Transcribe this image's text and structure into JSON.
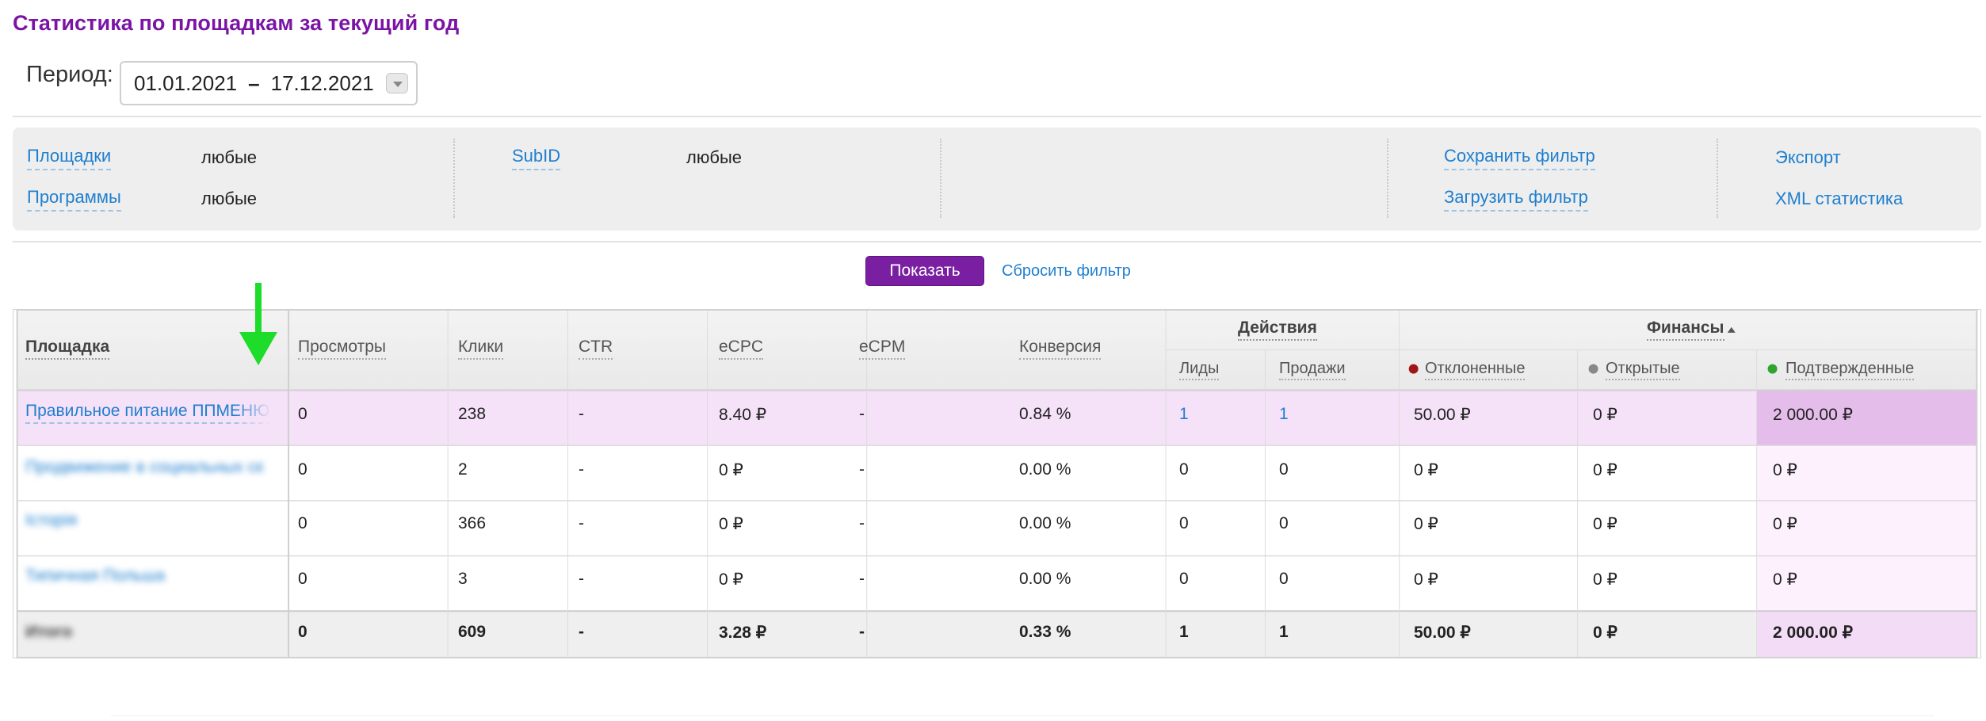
{
  "page": {
    "title": "Статистика по площадкам за текущий год"
  },
  "period": {
    "label": "Период:",
    "from": "01.01.2021",
    "separator": "–",
    "to": "17.12.2021"
  },
  "filters": {
    "platforms_label": "Площадки",
    "platforms_value": "любые",
    "programs_label": "Программы",
    "programs_value": "любые",
    "subid_label": "SubID",
    "subid_value": "любые",
    "save_filter": "Сохранить фильтр",
    "load_filter": "Загрузить фильтр",
    "export": "Экспорт",
    "xml_stats": "XML статистика"
  },
  "actions": {
    "show": "Показать",
    "reset": "Сбросить фильтр"
  },
  "table": {
    "headers": {
      "platform": "Площадка",
      "views": "Просмотры",
      "clicks": "Клики",
      "ctr": "CTR",
      "ecpc": "eCPC",
      "ecpm": "eCPM",
      "conversion": "Конверсия",
      "actions_group": "Действия",
      "leads": "Лиды",
      "sales": "Продажи",
      "finance_group": "Финансы",
      "rejected": "Отклоненные",
      "open": "Открытые",
      "confirmed": "Подтвержденные"
    },
    "rows": [
      {
        "platform": "Правильное питание ППМЕНЮ",
        "views": "0",
        "clicks": "238",
        "ctr": "-",
        "ecpc": "8.40 ₽",
        "ecpm": "-",
        "conversion": "0.84 %",
        "leads": "1",
        "sales": "1",
        "rejected": "50.00 ₽",
        "open": "0 ₽",
        "confirmed": "2 000.00 ₽"
      },
      {
        "platform": "Продвижение в социальных сетях",
        "views": "0",
        "clicks": "2",
        "ctr": "-",
        "ecpc": "0 ₽",
        "ecpm": "-",
        "conversion": "0.00 %",
        "leads": "0",
        "sales": "0",
        "rejected": "0 ₽",
        "open": "0 ₽",
        "confirmed": "0 ₽"
      },
      {
        "platform": "Історія",
        "views": "0",
        "clicks": "366",
        "ctr": "-",
        "ecpc": "0 ₽",
        "ecpm": "-",
        "conversion": "0.00 %",
        "leads": "0",
        "sales": "0",
        "rejected": "0 ₽",
        "open": "0 ₽",
        "confirmed": "0 ₽"
      },
      {
        "platform": "Типичная Польша",
        "views": "0",
        "clicks": "3",
        "ctr": "-",
        "ecpc": "0 ₽",
        "ecpm": "-",
        "conversion": "0.00 %",
        "leads": "0",
        "sales": "0",
        "rejected": "0 ₽",
        "open": "0 ₽",
        "confirmed": "0 ₽"
      }
    ],
    "totals": {
      "label": "Итого",
      "views": "0",
      "clicks": "609",
      "ctr": "-",
      "ecpc": "3.28 ₽",
      "ecpm": "-",
      "conversion": "0.33 %",
      "leads": "1",
      "sales": "1",
      "rejected": "50.00 ₽",
      "open": "0 ₽",
      "confirmed": "2 000.00 ₽"
    }
  },
  "colors": {
    "accent": "#7b1fa2",
    "link": "#1f7fcf",
    "highlight_row": "#f5e1f8",
    "confirmed_col": "#e4bdea",
    "arrow": "#1edc2a"
  }
}
